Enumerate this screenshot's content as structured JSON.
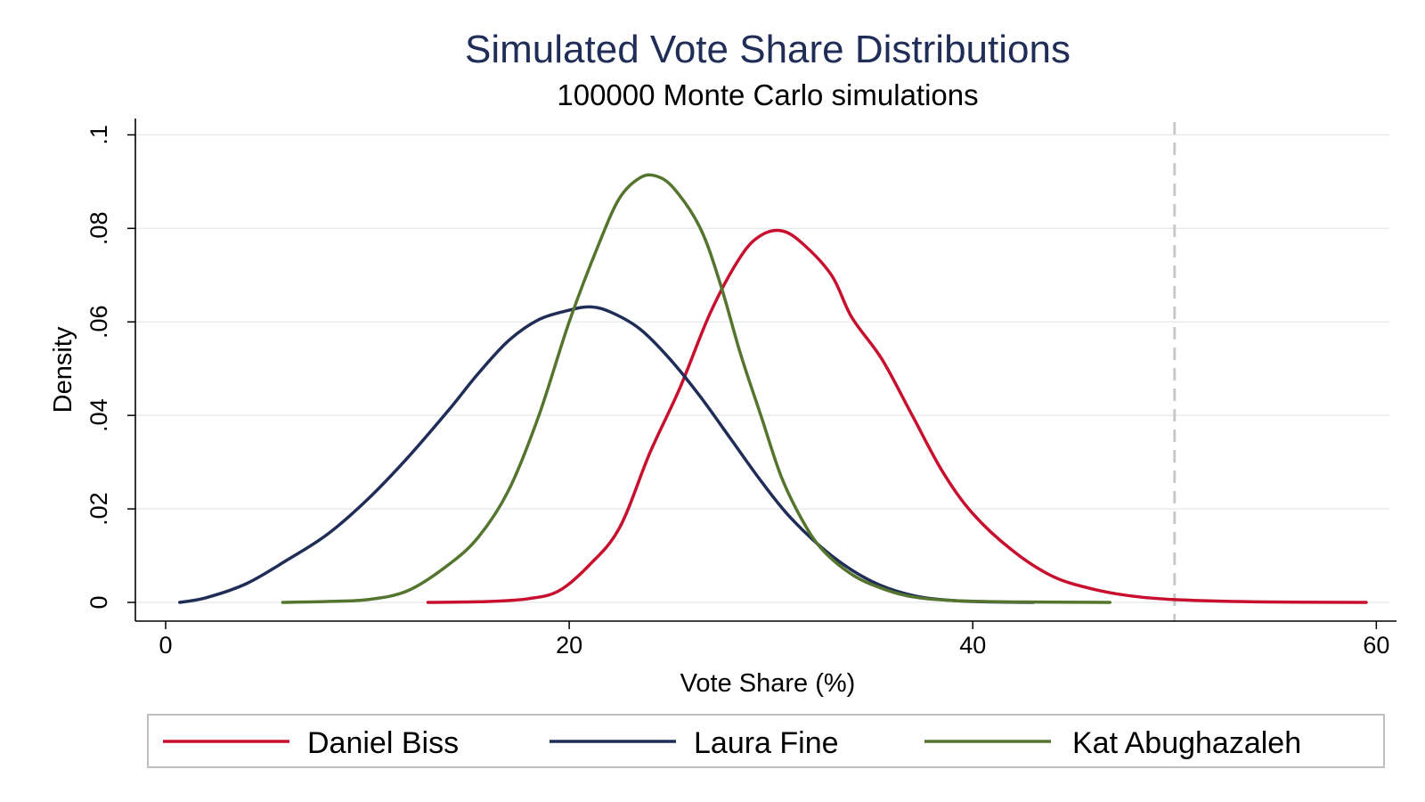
{
  "chart_data": {
    "type": "line",
    "title": "Simulated Vote Share Distributions",
    "subtitle": "100000 Monte Carlo simulations",
    "xlabel": "Vote Share (%)",
    "ylabel": "Density",
    "xlim": [
      -1.5,
      61
    ],
    "ylim": [
      -0.004,
      0.1035
    ],
    "x_ticks": [
      {
        "value": 0,
        "label": "0"
      },
      {
        "value": 20,
        "label": "20"
      },
      {
        "value": 40,
        "label": "40"
      },
      {
        "value": 60,
        "label": "60"
      }
    ],
    "y_ticks": [
      {
        "value": 0,
        "label": "0"
      },
      {
        "value": 0.02,
        "label": ".02"
      },
      {
        "value": 0.04,
        "label": ".04"
      },
      {
        "value": 0.06,
        "label": ".06"
      },
      {
        "value": 0.08,
        "label": ".08"
      },
      {
        "value": 0.1,
        "label": ".1"
      }
    ],
    "grid": true,
    "reference_line": {
      "x": 50,
      "style": "dashed",
      "color": "#c8c8c8"
    },
    "legend_position": "bottom",
    "series": [
      {
        "name": "Daniel Biss",
        "color": "#c8102e",
        "points": [
          [
            13,
            0
          ],
          [
            16,
            0.0002
          ],
          [
            18,
            0.0008
          ],
          [
            19.5,
            0.0025
          ],
          [
            21,
            0.008
          ],
          [
            22.5,
            0.016
          ],
          [
            24,
            0.032
          ],
          [
            25.5,
            0.046
          ],
          [
            27,
            0.062
          ],
          [
            28.5,
            0.074
          ],
          [
            29.5,
            0.0785
          ],
          [
            30.5,
            0.0795
          ],
          [
            31.5,
            0.077
          ],
          [
            33,
            0.07
          ],
          [
            34,
            0.061
          ],
          [
            35.5,
            0.052
          ],
          [
            37,
            0.04
          ],
          [
            38.5,
            0.028
          ],
          [
            40,
            0.019
          ],
          [
            42,
            0.011
          ],
          [
            44,
            0.0055
          ],
          [
            46,
            0.0028
          ],
          [
            48,
            0.0013
          ],
          [
            50,
            0.0006
          ],
          [
            53,
            0.0002
          ],
          [
            56,
            5e-05
          ],
          [
            59.5,
            0
          ]
        ]
      },
      {
        "name": "Laura Fine",
        "color": "#1f2d57",
        "points": [
          [
            0.7,
            0
          ],
          [
            2,
            0.001
          ],
          [
            4,
            0.004
          ],
          [
            6,
            0.009
          ],
          [
            8,
            0.0145
          ],
          [
            10,
            0.022
          ],
          [
            12,
            0.031
          ],
          [
            14,
            0.041
          ],
          [
            15.5,
            0.049
          ],
          [
            17,
            0.056
          ],
          [
            18.5,
            0.0605
          ],
          [
            20,
            0.0625
          ],
          [
            21,
            0.0632
          ],
          [
            22,
            0.0622
          ],
          [
            23.5,
            0.0585
          ],
          [
            25,
            0.052
          ],
          [
            26.5,
            0.044
          ],
          [
            28,
            0.035
          ],
          [
            29.5,
            0.026
          ],
          [
            31,
            0.018
          ],
          [
            33,
            0.01
          ],
          [
            35,
            0.0045
          ],
          [
            37,
            0.0015
          ],
          [
            39,
            0.0004
          ],
          [
            41,
            0.0001
          ],
          [
            43,
            0
          ]
        ]
      },
      {
        "name": "Kat Abughazaleh",
        "color": "#55752f",
        "points": [
          [
            5.8,
            0
          ],
          [
            8,
            0.0002
          ],
          [
            10,
            0.0006
          ],
          [
            12,
            0.0025
          ],
          [
            14,
            0.008
          ],
          [
            15.5,
            0.014
          ],
          [
            17,
            0.024
          ],
          [
            18.5,
            0.04
          ],
          [
            20,
            0.06
          ],
          [
            21.5,
            0.077
          ],
          [
            22.5,
            0.0865
          ],
          [
            23.5,
            0.0908
          ],
          [
            24.3,
            0.0912
          ],
          [
            25.2,
            0.0885
          ],
          [
            26.5,
            0.08
          ],
          [
            27.5,
            0.068
          ],
          [
            28.5,
            0.053
          ],
          [
            29.5,
            0.04
          ],
          [
            30.5,
            0.027
          ],
          [
            31.5,
            0.018
          ],
          [
            32.5,
            0.0115
          ],
          [
            34,
            0.006
          ],
          [
            35.5,
            0.003
          ],
          [
            37,
            0.0012
          ],
          [
            39,
            0.0004
          ],
          [
            42,
            0.0001
          ],
          [
            46.8,
            0
          ]
        ]
      }
    ]
  }
}
